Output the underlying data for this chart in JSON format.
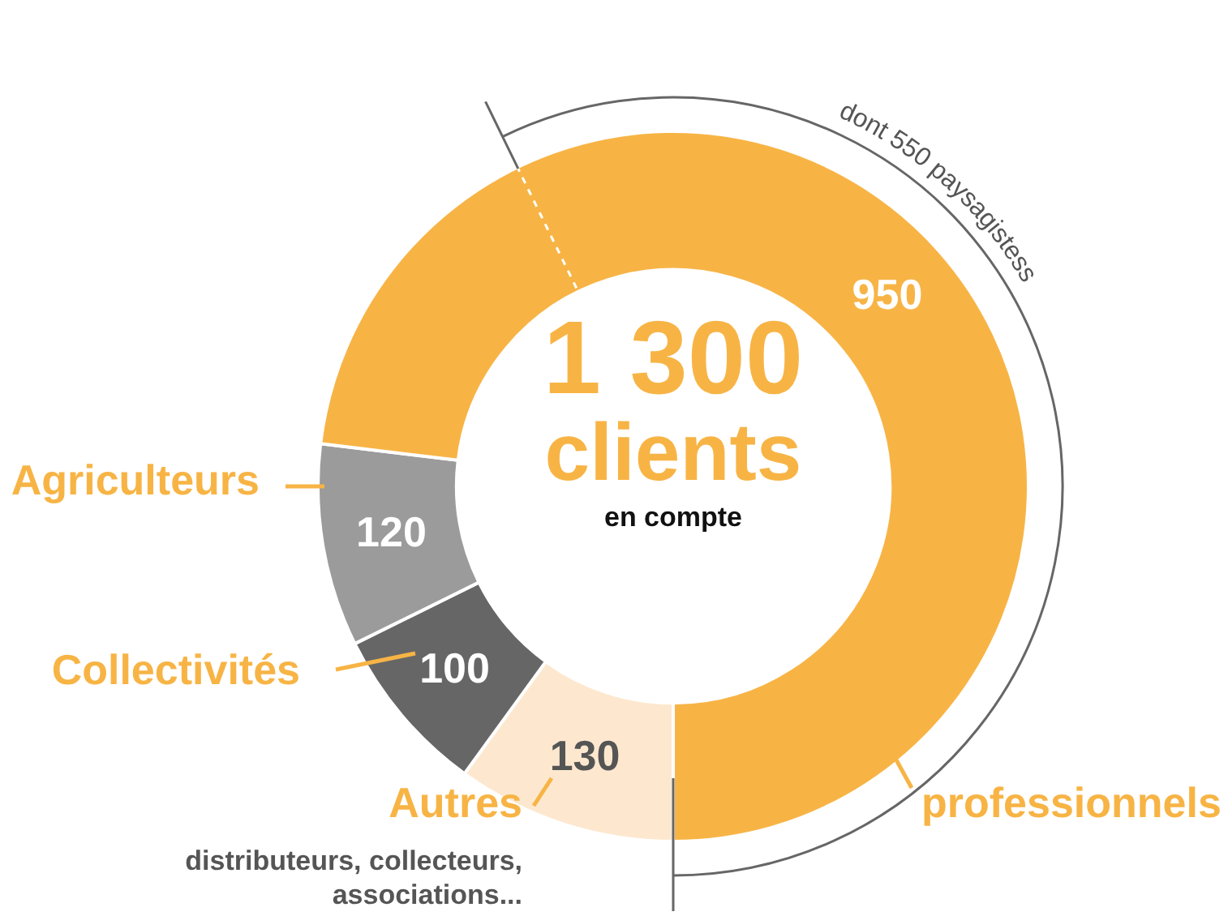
{
  "chart_data": {
    "type": "donut",
    "categories": [
      "Autres",
      "Collectivités",
      "Agriculteurs",
      "professionnels"
    ],
    "values": [
      130,
      100,
      120,
      950
    ],
    "colors": [
      "#fde8cf",
      "#666666",
      "#9b9b9b",
      "#f7b445"
    ],
    "data_labels": true,
    "legend": false,
    "annotations": [
      "1 300",
      "clients",
      "en compte",
      "distributeurs, collecteurs, associations...",
      "dont 550 paysagistess"
    ]
  }
}
